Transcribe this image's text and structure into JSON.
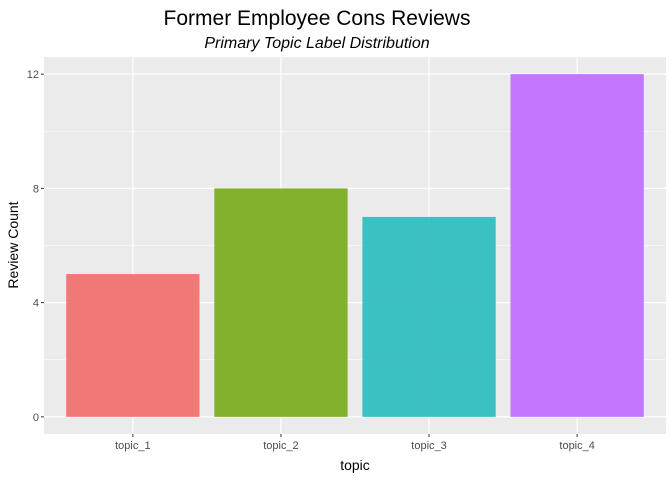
{
  "chart_data": {
    "type": "bar",
    "title": "Former Employee Cons Reviews",
    "subtitle": "Primary Topic Label Distribution",
    "xlabel": "topic",
    "ylabel": "Review Count",
    "categories": [
      "topic_1",
      "topic_2",
      "topic_3",
      "topic_4"
    ],
    "values": [
      5,
      8,
      7,
      12
    ],
    "colors": [
      "#F07270",
      "#7CAE24",
      "#32BEC2",
      "#C170FF"
    ],
    "ylim": [
      -0.6,
      12.6
    ],
    "yticks": [
      0,
      4,
      8,
      12
    ],
    "ytick_labels": [
      "0",
      "4",
      "8",
      "12"
    ],
    "grid": true,
    "panel_background": "#EBEBEB",
    "legend": "none"
  }
}
